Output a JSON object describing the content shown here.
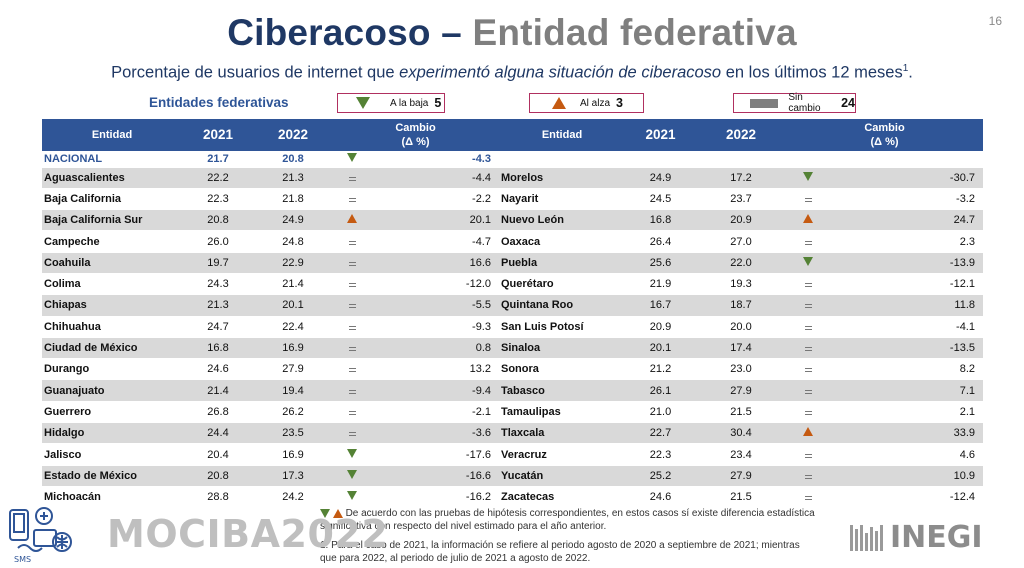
{
  "page_number": "16",
  "title": {
    "part1": "Ciberacoso –",
    "part2": "Entidad federativa"
  },
  "subtitle": {
    "before": "Porcentaje de usuarios de internet que ",
    "italic": "experimentó alguna situación de ciberacoso",
    "after": " en los últimos 12 meses",
    "sup": "1",
    "end": "."
  },
  "legend": {
    "section_label": "Entidades federativas",
    "baja_label": "A la baja",
    "baja_count": "5",
    "alza_label": "Al alza",
    "alza_count": "3",
    "sin_label": "Sin cambio",
    "sin_count": "24"
  },
  "colors": {
    "header": "#2f5597",
    "down": "#548235",
    "up": "#c55a11",
    "title": "#1f3864"
  },
  "table": {
    "headers": {
      "entidad": "Entidad",
      "y2021": "2021",
      "y2022": "2022",
      "cambio1": "Cambio",
      "cambio2": "(Δ %)"
    },
    "nacional": {
      "name": "NACIONAL",
      "v2021": "21.7",
      "v2022": "20.8",
      "trend": "down",
      "change": "-4.3"
    },
    "rows": [
      {
        "left": {
          "name": "Aguascalientes",
          "v2021": "22.2",
          "v2022": "21.3",
          "trend": "same",
          "change": "-4.4"
        },
        "right": {
          "name": "Morelos",
          "v2021": "24.9",
          "v2022": "17.2",
          "trend": "down",
          "change": "-30.7"
        }
      },
      {
        "left": {
          "name": "Baja California",
          "v2021": "22.3",
          "v2022": "21.8",
          "trend": "same",
          "change": "-2.2"
        },
        "right": {
          "name": "Nayarit",
          "v2021": "24.5",
          "v2022": "23.7",
          "trend": "same",
          "change": "-3.2"
        }
      },
      {
        "left": {
          "name": "Baja California Sur",
          "v2021": "20.8",
          "v2022": "24.9",
          "trend": "up",
          "change": "20.1"
        },
        "right": {
          "name": "Nuevo León",
          "v2021": "16.8",
          "v2022": "20.9",
          "trend": "up",
          "change": "24.7"
        }
      },
      {
        "left": {
          "name": "Campeche",
          "v2021": "26.0",
          "v2022": "24.8",
          "trend": "same",
          "change": "-4.7"
        },
        "right": {
          "name": "Oaxaca",
          "v2021": "26.4",
          "v2022": "27.0",
          "trend": "same",
          "change": "2.3"
        }
      },
      {
        "left": {
          "name": "Coahuila",
          "v2021": "19.7",
          "v2022": "22.9",
          "trend": "same",
          "change": "16.6"
        },
        "right": {
          "name": "Puebla",
          "v2021": "25.6",
          "v2022": "22.0",
          "trend": "down",
          "change": "-13.9"
        }
      },
      {
        "left": {
          "name": "Colima",
          "v2021": "24.3",
          "v2022": "21.4",
          "trend": "same",
          "change": "-12.0"
        },
        "right": {
          "name": "Querétaro",
          "v2021": "21.9",
          "v2022": "19.3",
          "trend": "same",
          "change": "-12.1"
        }
      },
      {
        "left": {
          "name": "Chiapas",
          "v2021": "21.3",
          "v2022": "20.1",
          "trend": "same",
          "change": "-5.5"
        },
        "right": {
          "name": "Quintana Roo",
          "v2021": "16.7",
          "v2022": "18.7",
          "trend": "same",
          "change": "11.8"
        }
      },
      {
        "left": {
          "name": "Chihuahua",
          "v2021": "24.7",
          "v2022": "22.4",
          "trend": "same",
          "change": "-9.3"
        },
        "right": {
          "name": "San Luis Potosí",
          "v2021": "20.9",
          "v2022": "20.0",
          "trend": "same",
          "change": "-4.1"
        }
      },
      {
        "left": {
          "name": "Ciudad de México",
          "v2021": "16.8",
          "v2022": "16.9",
          "trend": "same",
          "change": "0.8"
        },
        "right": {
          "name": "Sinaloa",
          "v2021": "20.1",
          "v2022": "17.4",
          "trend": "same",
          "change": "-13.5"
        }
      },
      {
        "left": {
          "name": "Durango",
          "v2021": "24.6",
          "v2022": "27.9",
          "trend": "same",
          "change": "13.2"
        },
        "right": {
          "name": "Sonora",
          "v2021": "21.2",
          "v2022": "23.0",
          "trend": "same",
          "change": "8.2"
        }
      },
      {
        "left": {
          "name": "Guanajuato",
          "v2021": "21.4",
          "v2022": "19.4",
          "trend": "same",
          "change": "-9.4"
        },
        "right": {
          "name": "Tabasco",
          "v2021": "26.1",
          "v2022": "27.9",
          "trend": "same",
          "change": "7.1"
        }
      },
      {
        "left": {
          "name": "Guerrero",
          "v2021": "26.8",
          "v2022": "26.2",
          "trend": "same",
          "change": "-2.1"
        },
        "right": {
          "name": "Tamaulipas",
          "v2021": "21.0",
          "v2022": "21.5",
          "trend": "same",
          "change": "2.1"
        }
      },
      {
        "left": {
          "name": "Hidalgo",
          "v2021": "24.4",
          "v2022": "23.5",
          "trend": "same",
          "change": "-3.6"
        },
        "right": {
          "name": "Tlaxcala",
          "v2021": "22.7",
          "v2022": "30.4",
          "trend": "up",
          "change": "33.9"
        }
      },
      {
        "left": {
          "name": "Jalisco",
          "v2021": "20.4",
          "v2022": "16.9",
          "trend": "down",
          "change": "-17.6"
        },
        "right": {
          "name": "Veracruz",
          "v2021": "22.3",
          "v2022": "23.4",
          "trend": "same",
          "change": "4.6"
        }
      },
      {
        "left": {
          "name": "Estado de México",
          "v2021": "20.8",
          "v2022": "17.3",
          "trend": "down",
          "change": "-16.6"
        },
        "right": {
          "name": "Yucatán",
          "v2021": "25.2",
          "v2022": "27.9",
          "trend": "same",
          "change": "10.9"
        }
      },
      {
        "left": {
          "name": "Michoacán",
          "v2021": "28.8",
          "v2022": "24.2",
          "trend": "down",
          "change": "-16.2"
        },
        "right": {
          "name": "Zacatecas",
          "v2021": "24.6",
          "v2022": "21.5",
          "trend": "same",
          "change": "-12.4"
        }
      }
    ]
  },
  "footnotes": {
    "note1": "De acuerdo con las pruebas de hipótesis correspondientes, en estos casos sí existe diferencia estadística significativa con respecto del nivel estimado para el año anterior.",
    "note2": "1. Para el caso de 2021, la información se refiere al periodo agosto de 2020 a septiembre de 2021; mientras que para 2022, al periodo de julio de 2021 a agosto de 2022."
  },
  "branding": {
    "mociba": "MOCIBA2022",
    "inegi": "INEGI"
  }
}
